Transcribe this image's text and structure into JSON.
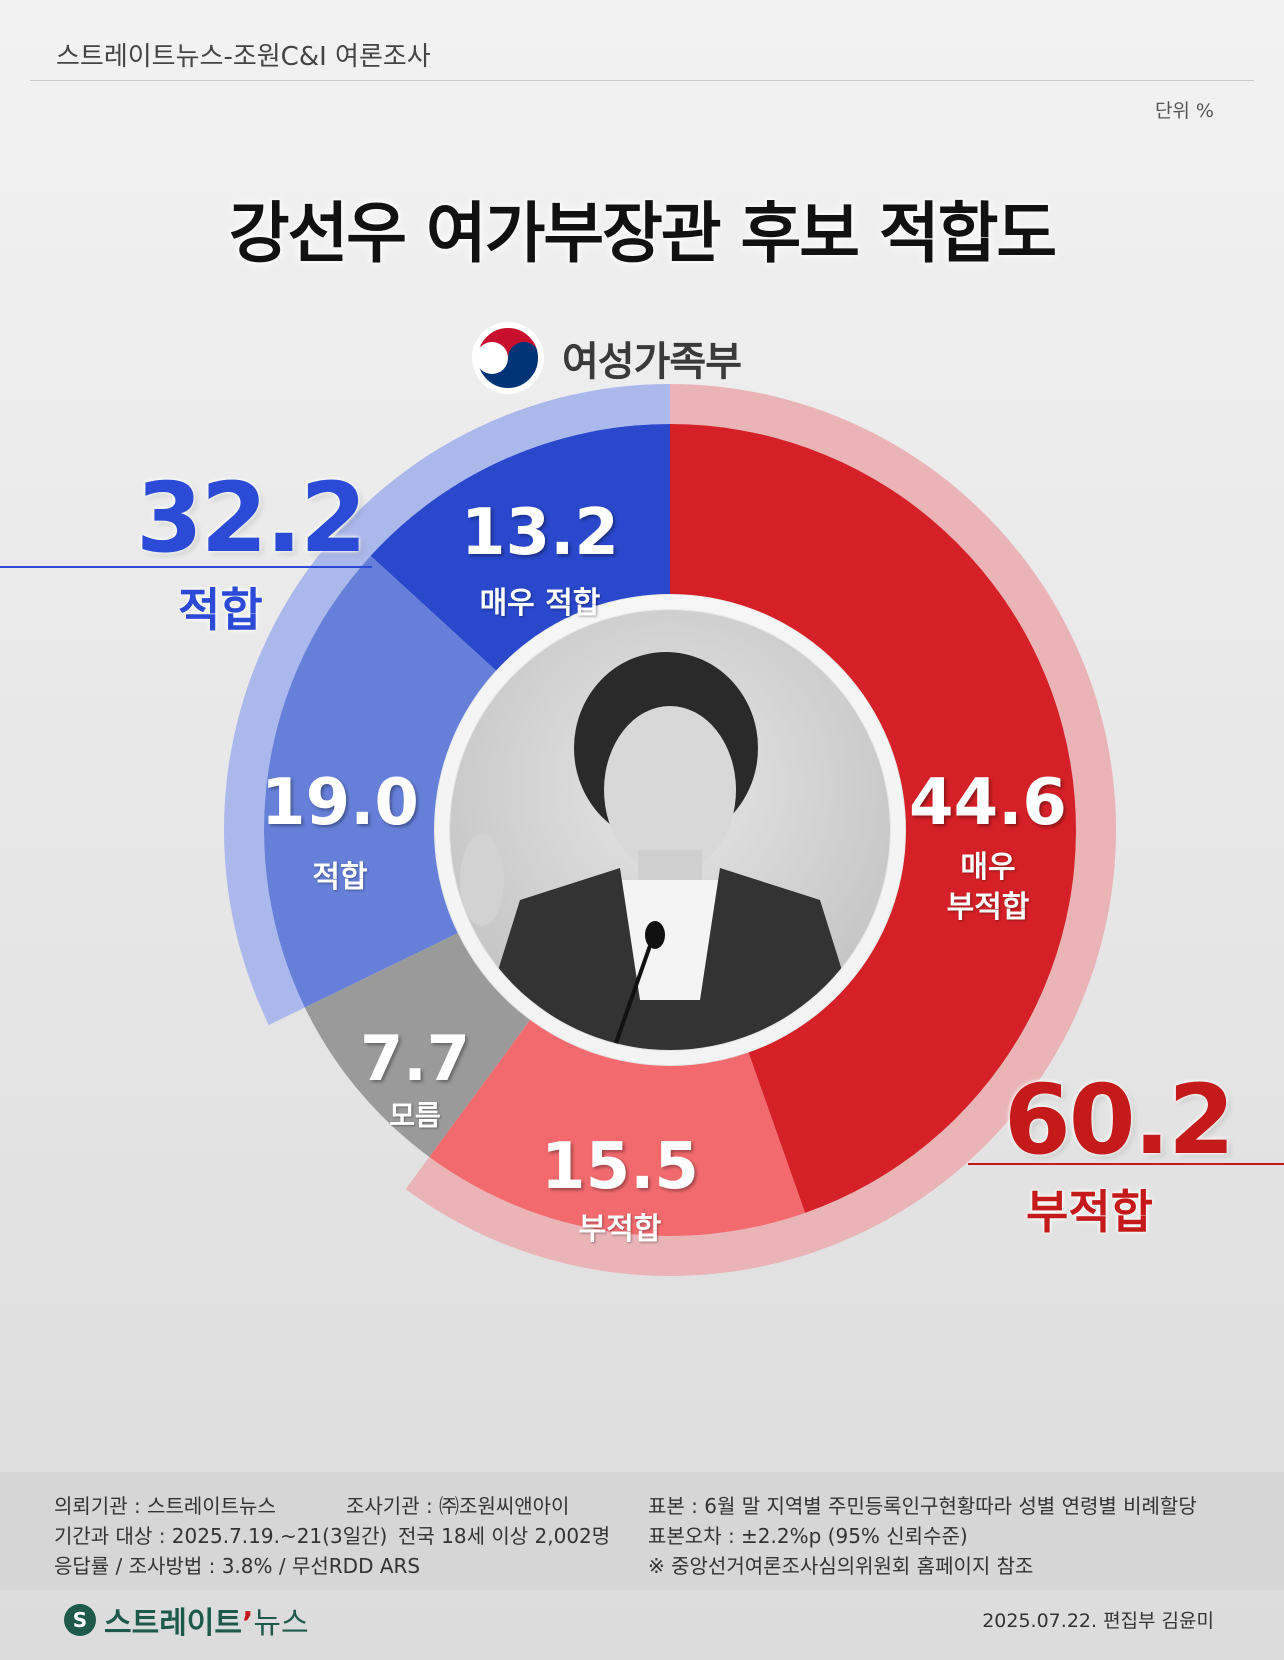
{
  "header": {
    "title": "스트레이트뉴스-조원C&I 여론조사",
    "unit": "단위 %"
  },
  "title": "강선우 여가부장관 후보 적합도",
  "ministry": {
    "name": "여성가족부",
    "logo_icon": "taegeuk-emblem-icon"
  },
  "summary": {
    "fit": {
      "value": "32.2",
      "label": "적합",
      "color": "#2b4ad6"
    },
    "unfit": {
      "value": "60.2",
      "label": "부적합",
      "color": "#c41a1a"
    }
  },
  "chart_data": {
    "type": "pie",
    "variant": "donut",
    "unit": "%",
    "categories": [
      "매우 적합",
      "적합",
      "모름",
      "부적합",
      "매우 부적합"
    ],
    "values": [
      13.2,
      19.0,
      7.7,
      15.5,
      44.6
    ],
    "value_labels": [
      "13.2",
      "19.0",
      "7.7",
      "15.5",
      "44.6"
    ],
    "colors": [
      "#2a48cc",
      "#6680da",
      "#9a9a9a",
      "#f26a6e",
      "#d42026"
    ],
    "groups": [
      {
        "name": "적합",
        "value": 32.2,
        "members": [
          "매우 적합",
          "적합"
        ],
        "ring_color": "#aab8ec"
      },
      {
        "name": "부적합",
        "value": 60.2,
        "members": [
          "부적합",
          "매우 부적합"
        ],
        "ring_color": "#eab3b6"
      }
    ],
    "center_image": "nominee-photo",
    "start": "top",
    "direction": "counterclockwise"
  },
  "footer": {
    "requester": "의뢰기관 : 스트레이트뉴스",
    "agency": "조사기관 : ㈜조원씨앤아이",
    "period": "기간과 대상 : 2025.7.19.~21(3일간)",
    "target": "전국 18세 이상  2,002명",
    "method": "응답률 / 조사방법 : 3.8% / 무선RDD ARS",
    "sample": "표본 : 6월 말 지역별 주민등록인구현황따라 성별 연령별 비례할당",
    "error": "표본오차 : ±2.2%p (95% 신뢰수준)",
    "note": "※ 중앙선거여론조사심의위원회 홈페이지 참조"
  },
  "brand": {
    "name_main": "스트레이트",
    "name_tick": "’",
    "name_sub": "뉴스",
    "logo_icon": "straight-news-logo-icon"
  },
  "credit": "2025.07.22. 편집부 김윤미"
}
